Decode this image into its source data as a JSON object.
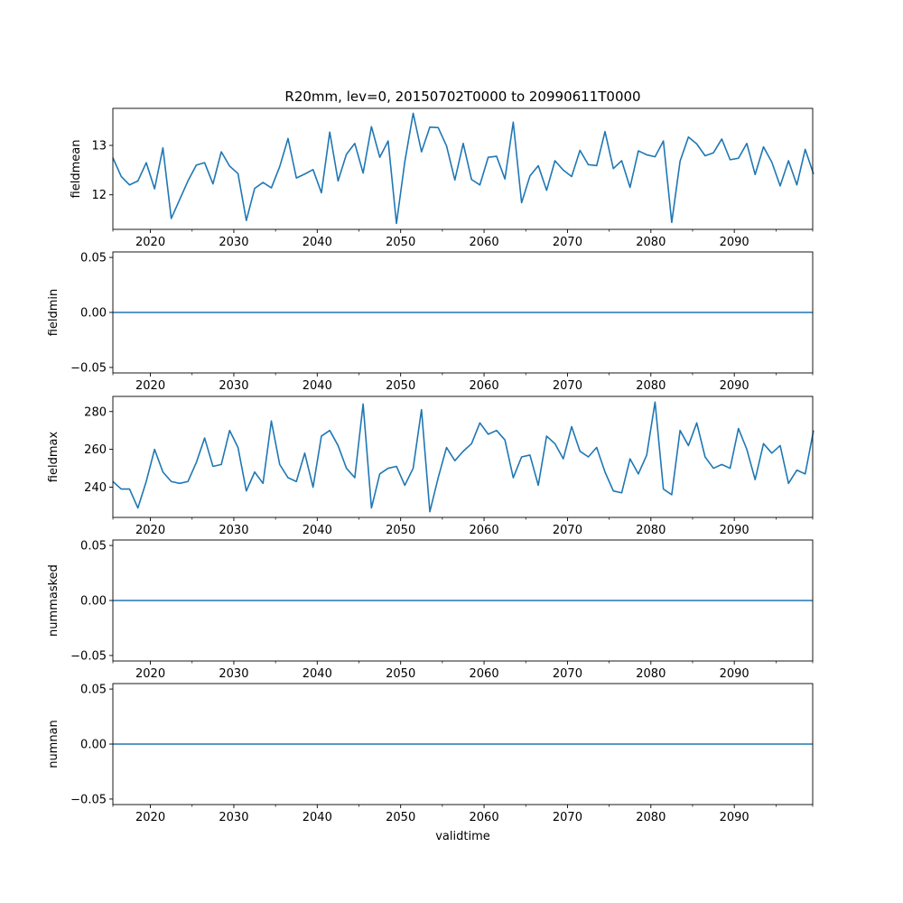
{
  "figure": {
    "title": "R20mm, lev=0, 20150702T0000 to 20990611T0000",
    "xlabel": "validtime",
    "line_color": "#1f77b4"
  },
  "chart_data": [
    {
      "type": "line",
      "name": "fieldmean",
      "ylabel": "fieldmean",
      "xlim": [
        2015.5,
        2099.4
      ],
      "ylim": [
        11.3,
        13.75
      ],
      "yticks": [
        12,
        13
      ],
      "ytick_labels": [
        "12",
        "13"
      ],
      "xticks": [
        2020,
        2030,
        2040,
        2050,
        2060,
        2070,
        2080,
        2090
      ],
      "xtick_labels": [
        "2020",
        "2030",
        "2040",
        "2050",
        "2060",
        "2070",
        "2080",
        "2090"
      ],
      "x_start": 2015.5,
      "x_step": 1,
      "values": [
        12.75,
        12.37,
        12.2,
        12.28,
        12.65,
        12.12,
        12.95,
        11.52,
        11.9,
        12.28,
        12.6,
        12.65,
        12.22,
        12.87,
        12.58,
        12.43,
        11.48,
        12.13,
        12.25,
        12.14,
        12.57,
        13.14,
        12.34,
        12.42,
        12.51,
        12.04,
        13.27,
        12.28,
        12.82,
        13.04,
        12.44,
        13.38,
        12.76,
        13.09,
        11.42,
        12.67,
        13.65,
        12.87,
        13.37,
        13.36,
        12.99,
        12.3,
        13.04,
        12.31,
        12.2,
        12.76,
        12.78,
        12.32,
        13.47,
        11.84,
        12.38,
        12.59,
        12.09,
        12.69,
        12.5,
        12.37,
        12.9,
        12.61,
        12.59,
        13.28,
        12.53,
        12.69,
        12.15,
        12.89,
        12.81,
        12.77,
        13.09,
        11.44,
        12.68,
        13.17,
        13.03,
        12.79,
        12.85,
        13.13,
        12.71,
        12.74,
        13.04,
        12.41,
        12.97,
        12.66,
        12.18,
        12.69,
        12.2,
        12.92,
        12.42
      ]
    },
    {
      "type": "line",
      "name": "fieldmin",
      "ylabel": "fieldmin",
      "xlim": [
        2015.5,
        2099.4
      ],
      "ylim": [
        -0.055,
        0.055
      ],
      "yticks": [
        -0.05,
        0.0,
        0.05
      ],
      "ytick_labels": [
        "−0.05",
        "0.00",
        "0.05"
      ],
      "xticks": [
        2020,
        2030,
        2040,
        2050,
        2060,
        2070,
        2080,
        2090
      ],
      "xtick_labels": [
        "2020",
        "2030",
        "2040",
        "2050",
        "2060",
        "2070",
        "2080",
        "2090"
      ],
      "x_start": 2015.5,
      "x_step": 1,
      "constant": 0
    },
    {
      "type": "line",
      "name": "fieldmax",
      "ylabel": "fieldmax",
      "xlim": [
        2015.5,
        2099.4
      ],
      "ylim": [
        224,
        288
      ],
      "yticks": [
        240,
        260,
        280
      ],
      "ytick_labels": [
        "240",
        "260",
        "280"
      ],
      "xticks": [
        2020,
        2030,
        2040,
        2050,
        2060,
        2070,
        2080,
        2090
      ],
      "xtick_labels": [
        "2020",
        "2030",
        "2040",
        "2050",
        "2060",
        "2070",
        "2080",
        "2090"
      ],
      "x_start": 2015.5,
      "x_step": 1,
      "values": [
        243,
        239,
        239,
        229,
        243,
        260,
        248,
        243,
        242,
        243,
        253,
        266,
        251,
        252,
        270,
        261,
        238,
        248,
        242,
        275,
        252,
        245,
        243,
        258,
        240,
        267,
        270,
        262,
        250,
        245,
        284,
        229,
        247,
        250,
        251,
        241,
        250,
        281,
        227,
        245,
        261,
        254,
        259,
        263,
        274,
        268,
        270,
        265,
        245,
        256,
        257,
        241,
        267,
        263,
        255,
        272,
        259,
        256,
        261,
        248,
        238,
        237,
        255,
        247,
        257,
        285,
        239,
        236,
        270,
        262,
        274,
        256,
        250,
        252,
        250,
        271,
        260,
        244,
        263,
        258,
        262,
        242,
        249,
        247,
        270
      ]
    },
    {
      "type": "line",
      "name": "nummasked",
      "ylabel": "nummasked",
      "xlim": [
        2015.5,
        2099.4
      ],
      "ylim": [
        -0.055,
        0.055
      ],
      "yticks": [
        -0.05,
        0.0,
        0.05
      ],
      "ytick_labels": [
        "−0.05",
        "0.00",
        "0.05"
      ],
      "xticks": [
        2020,
        2030,
        2040,
        2050,
        2060,
        2070,
        2080,
        2090
      ],
      "xtick_labels": [
        "2020",
        "2030",
        "2040",
        "2050",
        "2060",
        "2070",
        "2080",
        "2090"
      ],
      "x_start": 2015.5,
      "x_step": 1,
      "constant": 0
    },
    {
      "type": "line",
      "name": "numnan",
      "ylabel": "numnan",
      "xlim": [
        2015.5,
        2099.4
      ],
      "ylim": [
        -0.055,
        0.055
      ],
      "yticks": [
        -0.05,
        0.0,
        0.05
      ],
      "ytick_labels": [
        "−0.05",
        "0.00",
        "0.05"
      ],
      "xticks": [
        2020,
        2030,
        2040,
        2050,
        2060,
        2070,
        2080,
        2090
      ],
      "xtick_labels": [
        "2020",
        "2030",
        "2040",
        "2050",
        "2060",
        "2070",
        "2080",
        "2090"
      ],
      "x_start": 2015.5,
      "x_step": 1,
      "constant": 0
    }
  ]
}
